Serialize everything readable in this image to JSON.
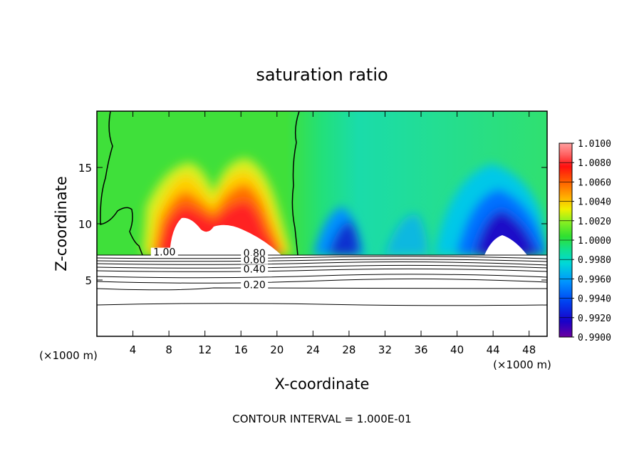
{
  "chart_data": {
    "type": "heatmap",
    "title": "saturation ratio",
    "xlabel": "X-coordinate",
    "ylabel": "Z-coordinate",
    "x_unit": "(×1000 m)",
    "footer": "CONTOUR INTERVAL = 1.000E-01",
    "xlim": [
      0,
      50
    ],
    "ylim": [
      0,
      20
    ],
    "x_ticks": [
      4,
      8,
      12,
      16,
      20,
      24,
      28,
      32,
      36,
      40,
      44,
      48
    ],
    "y_ticks": [
      5,
      10,
      15
    ],
    "colorbar": {
      "levels": [
        "0.9900",
        "0.9920",
        "0.9940",
        "0.9960",
        "0.9980",
        "1.0000",
        "1.0020",
        "1.0040",
        "1.0060",
        "1.0080",
        "1.0100"
      ],
      "range": [
        0.99,
        1.01
      ]
    },
    "contour_labels": [
      {
        "text": "1.00",
        "x": 7.5,
        "y": 7.3
      },
      {
        "text": "0.80",
        "x": 17.5,
        "y": 7.2
      },
      {
        "text": "0.60",
        "x": 17.5,
        "y": 6.6
      },
      {
        "text": "0.40",
        "x": 17.5,
        "y": 5.8
      },
      {
        "text": "0.20",
        "x": 17.5,
        "y": 4.4
      }
    ]
  }
}
